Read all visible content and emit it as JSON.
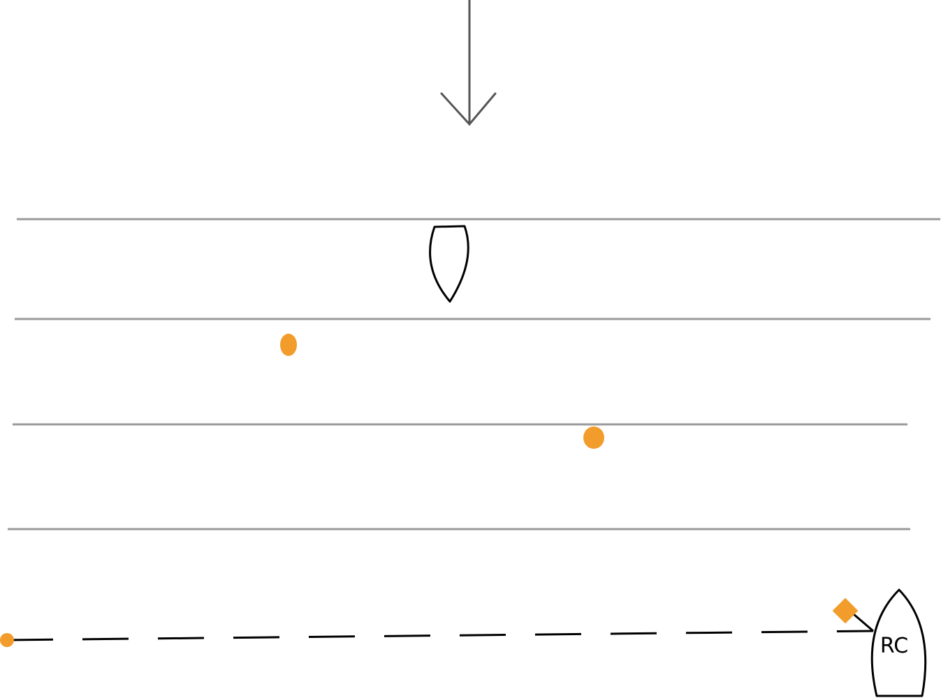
{
  "committee_boat": {
    "label": "RC"
  }
}
